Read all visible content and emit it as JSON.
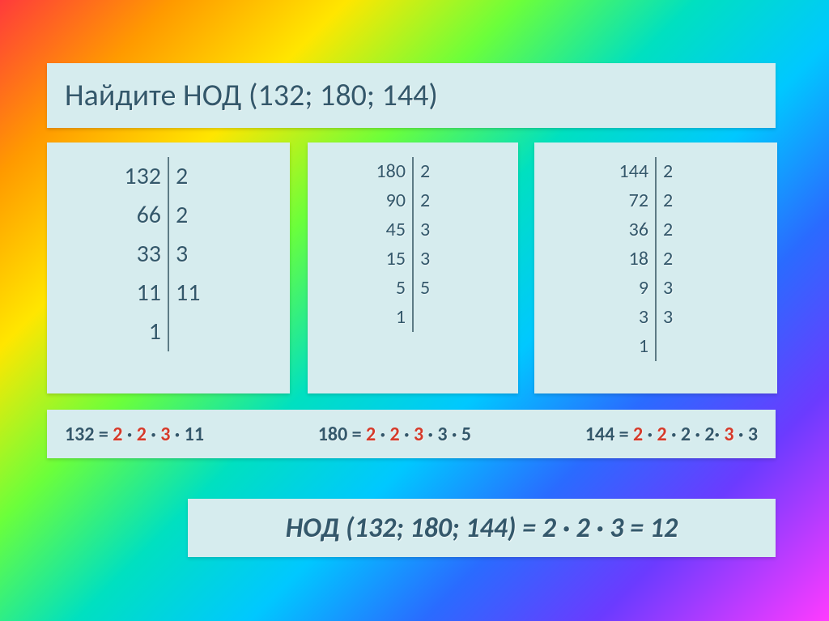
{
  "colors": {
    "card_bg": "#d6ecee",
    "text": "#34586b",
    "highlight": "#d63a2a",
    "vline": "#5d7b85"
  },
  "title": "Найдите  НОД  (132; 180; 144)",
  "factorizations": [
    {
      "size": "big",
      "left": [
        "132",
        "66",
        "33",
        "11",
        "1"
      ],
      "right": [
        "2",
        "2",
        "3",
        "11",
        ""
      ]
    },
    {
      "size": "sm",
      "left": [
        "180",
        "90",
        "45",
        "15",
        "5",
        "1"
      ],
      "right": [
        "2",
        "2",
        "3",
        "3",
        "5",
        ""
      ]
    },
    {
      "size": "sm",
      "left": [
        "144",
        "72",
        "36",
        "18",
        "9",
        "3",
        "1"
      ],
      "right": [
        "2",
        "2",
        "2",
        "2",
        "3",
        "3",
        ""
      ]
    }
  ],
  "results": [
    {
      "lead": "132 = ",
      "parts": [
        {
          "t": "2",
          "hl": true
        },
        {
          "t": " · "
        },
        {
          "t": "2",
          "hl": true
        },
        {
          "t": " · "
        },
        {
          "t": "3",
          "hl": true
        },
        {
          "t": " · 11"
        }
      ]
    },
    {
      "lead": "180 = ",
      "parts": [
        {
          "t": "2",
          "hl": true
        },
        {
          "t": " · "
        },
        {
          "t": "2",
          "hl": true
        },
        {
          "t": " · "
        },
        {
          "t": "3",
          "hl": true
        },
        {
          "t": " · 3 · 5"
        }
      ]
    },
    {
      "lead": "144 = ",
      "parts": [
        {
          "t": "2",
          "hl": true
        },
        {
          "t": " · "
        },
        {
          "t": "2",
          "hl": true
        },
        {
          "t": " · 2 · 2· "
        },
        {
          "t": "3",
          "hl": true
        },
        {
          "t": " · 3"
        }
      ]
    }
  ],
  "answer": "НОД (132; 180; 144) = 2 · 2 · 3 = 12"
}
